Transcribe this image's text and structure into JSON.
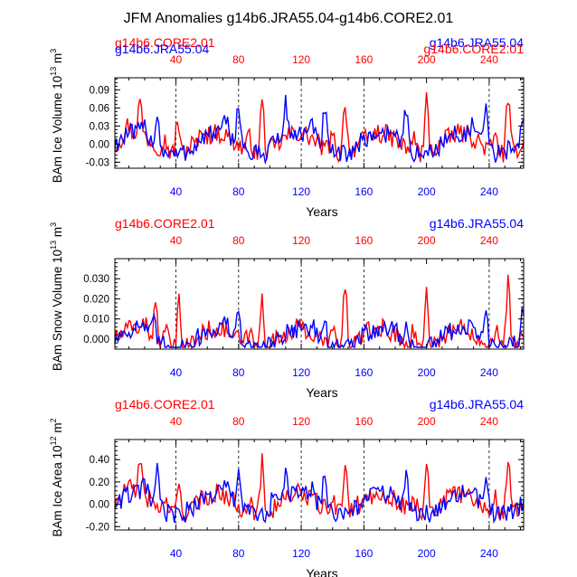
{
  "title": "JFM Anomalies g14b6.JRA55.04-g14b6.CORE2.01",
  "colors": {
    "core": "#ff0000",
    "jra": "#0000ff",
    "axis": "#000000"
  },
  "chart_data": [
    {
      "type": "line",
      "ylabel": "BAm Ice Volume 10",
      "yexp": "13",
      "yunit": " m",
      "yunitexp": "3",
      "xlabel": "Years",
      "xlim": [
        1,
        262
      ],
      "ylim": [
        -0.04,
        0.11
      ],
      "yticks": [
        -0.03,
        0.0,
        0.03,
        0.06,
        0.09
      ],
      "yticklabels": [
        "-0.03",
        "0.00",
        "0.03",
        "0.06",
        "0.09"
      ],
      "xticks": [
        40,
        80,
        120,
        160,
        200,
        240
      ],
      "xticklabels": [
        "40",
        "80",
        "120",
        "160",
        "200",
        "240"
      ],
      "vlines": [
        40,
        80,
        120,
        160,
        240
      ],
      "legend_left": "g14b6.CORE2.01",
      "legend_right": "g14b6.JRA55.04",
      "overlap_left": "g14b6.JRA55.04",
      "overlap_right": "g14b6.CORE2.01",
      "series": [
        {
          "name": "g14b6.CORE2.01",
          "color": "red",
          "peaks": [
            [
              17,
              0.065
            ],
            [
              41,
              0.07
            ],
            [
              57,
              0.03
            ],
            [
              95,
              0.098
            ],
            [
              148,
              0.1
            ],
            [
              200,
              0.098
            ],
            [
              252,
              0.105
            ]
          ]
        },
        {
          "name": "g14b6.JRA55.04",
          "color": "blue",
          "peaks": [
            [
              28,
              0.06
            ],
            [
              80,
              0.085
            ],
            [
              110,
              0.07
            ],
            [
              135,
              0.08
            ],
            [
              187,
              0.08
            ],
            [
              238,
              0.08
            ],
            [
              261,
              0.05
            ]
          ]
        }
      ]
    },
    {
      "type": "line",
      "ylabel": "BAm Snow Volume 10",
      "yexp": "13",
      "yunit": " m",
      "yunitexp": "3",
      "xlabel": "Years",
      "xlim": [
        1,
        262
      ],
      "ylim": [
        -0.005,
        0.04
      ],
      "yticks": [
        0.0,
        0.01,
        0.02,
        0.03
      ],
      "yticklabels": [
        "0.000",
        "0.010",
        "0.020",
        "0.030"
      ],
      "xticks": [
        40,
        80,
        120,
        160,
        200,
        240
      ],
      "xticklabels": [
        "40",
        "80",
        "120",
        "160",
        "200",
        "240"
      ],
      "vlines": [
        40,
        80,
        120,
        160,
        240
      ],
      "legend_left": "g14b6.CORE2.01",
      "legend_right": "g14b6.JRA55.04",
      "series": [
        {
          "name": "g14b6.CORE2.01",
          "color": "red",
          "peaks": [
            [
              27,
              0.019
            ],
            [
              42,
              0.026
            ],
            [
              95,
              0.028
            ],
            [
              148,
              0.036
            ],
            [
              200,
              0.033
            ],
            [
              252,
              0.038
            ]
          ]
        },
        {
          "name": "g14b6.JRA55.04",
          "color": "blue",
          "peaks": [
            [
              26,
              0.01
            ],
            [
              80,
              0.015
            ],
            [
              135,
              0.016
            ],
            [
              187,
              0.015
            ],
            [
              238,
              0.015
            ],
            [
              261,
              0.016
            ]
          ]
        }
      ]
    },
    {
      "type": "line",
      "ylabel": "BAm Ice Area 10",
      "yexp": "12",
      "yunit": " m",
      "yunitexp": "2",
      "xlabel": "Years",
      "xlim": [
        1,
        262
      ],
      "ylim": [
        -0.23,
        0.58
      ],
      "yticks": [
        -0.2,
        0.0,
        0.2,
        0.4
      ],
      "yticklabels": [
        "-0.20",
        "0.00",
        "0.20",
        "0.40"
      ],
      "xticks": [
        40,
        80,
        120,
        160,
        200,
        240
      ],
      "xticklabels": [
        "40",
        "80",
        "120",
        "160",
        "200",
        "240"
      ],
      "vlines": [
        40,
        80,
        120,
        160,
        240
      ],
      "legend_left": "g14b6.CORE2.01",
      "legend_right": "g14b6.JRA55.04",
      "series": [
        {
          "name": "g14b6.CORE2.01",
          "color": "red",
          "peaks": [
            [
              17,
              0.4
            ],
            [
              42,
              0.32
            ],
            [
              95,
              0.52
            ],
            [
              148,
              0.55
            ],
            [
              200,
              0.55
            ],
            [
              252,
              0.57
            ]
          ]
        },
        {
          "name": "g14b6.JRA55.04",
          "color": "blue",
          "peaks": [
            [
              28,
              0.35
            ],
            [
              80,
              0.4
            ],
            [
              110,
              0.3
            ],
            [
              135,
              0.35
            ],
            [
              187,
              0.36
            ],
            [
              238,
              0.38
            ]
          ]
        }
      ]
    }
  ]
}
